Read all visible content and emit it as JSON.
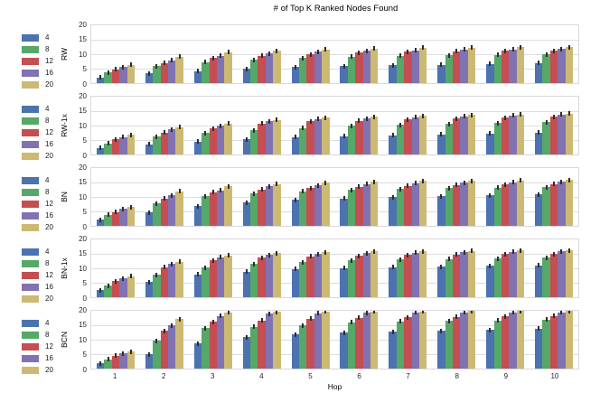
{
  "title": "# of Top K Ranked Nodes Found",
  "xlabel": "Hop",
  "palette": [
    "#4C72B0",
    "#55A868",
    "#C44E52",
    "#8172B2",
    "#CCB974"
  ],
  "chart_data": {
    "type": "bar",
    "title": "# of Top K Ranked Nodes Found",
    "xlabel": "Hop",
    "grid": true,
    "legend_position": "left-of-each-subplot",
    "categories": [
      "1",
      "2",
      "3",
      "4",
      "5",
      "6",
      "7",
      "8",
      "9",
      "10"
    ],
    "legend_labels": [
      "4",
      "8",
      "12",
      "16",
      "20"
    ],
    "yticks": [
      0,
      5,
      10,
      15,
      20
    ],
    "ylim": [
      0,
      20
    ],
    "error_bar": 0.7,
    "subplots": [
      {
        "name": "RW",
        "series": [
          {
            "name": "4",
            "values": [
              2.0,
              3.3,
              4.2,
              5.0,
              5.5,
              5.8,
              6.1,
              6.4,
              6.7,
              7.0
            ]
          },
          {
            "name": "8",
            "values": [
              3.7,
              5.9,
              7.2,
              8.1,
              8.7,
              9.1,
              9.4,
              9.6,
              9.8,
              10.0
            ]
          },
          {
            "name": "12",
            "values": [
              4.8,
              7.0,
              8.6,
              9.5,
              10.0,
              10.5,
              10.8,
              11.0,
              11.1,
              11.2
            ]
          },
          {
            "name": "16",
            "values": [
              5.6,
              7.9,
              9.4,
              10.2,
              10.8,
              11.2,
              11.4,
              11.6,
              11.7,
              11.8
            ]
          },
          {
            "name": "20",
            "values": [
              6.4,
              9.2,
              10.7,
              11.2,
              11.6,
              12.0,
              12.2,
              12.3,
              12.4,
              12.4
            ]
          }
        ]
      },
      {
        "name": "RW-1x",
        "series": [
          {
            "name": "4",
            "values": [
              2.2,
              3.5,
              4.5,
              5.3,
              6.0,
              6.3,
              6.7,
              7.0,
              7.3,
              7.6
            ]
          },
          {
            "name": "8",
            "values": [
              3.8,
              6.2,
              7.4,
              8.4,
              9.2,
              10.0,
              10.3,
              10.6,
              10.9,
              11.2
            ]
          },
          {
            "name": "12",
            "values": [
              5.2,
              7.6,
              9.0,
              10.7,
              11.5,
              11.7,
              12.1,
              12.4,
              12.7,
              13.0
            ]
          },
          {
            "name": "16",
            "values": [
              6.0,
              8.6,
              10.0,
              11.5,
              12.2,
              12.5,
              12.9,
              13.2,
              13.5,
              13.8
            ]
          },
          {
            "name": "20",
            "values": [
              6.8,
              9.4,
              10.7,
              11.9,
              12.7,
              13.0,
              13.3,
              13.6,
              13.9,
              14.2
            ]
          }
        ]
      },
      {
        "name": "BN",
        "series": [
          {
            "name": "4",
            "values": [
              2.1,
              4.6,
              6.8,
              8.0,
              9.0,
              9.5,
              9.9,
              10.2,
              10.5,
              10.8
            ]
          },
          {
            "name": "8",
            "values": [
              3.8,
              7.8,
              10.2,
              11.2,
              12.0,
              12.4,
              12.8,
              13.0,
              13.2,
              13.4
            ]
          },
          {
            "name": "12",
            "values": [
              4.8,
              9.4,
              11.7,
              12.6,
              13.1,
              13.5,
              13.9,
              14.1,
              14.3,
              14.5
            ]
          },
          {
            "name": "16",
            "values": [
              5.8,
              10.6,
              12.3,
              13.6,
              14.0,
              14.5,
              14.8,
              15.0,
              15.1,
              15.3
            ]
          },
          {
            "name": "20",
            "values": [
              6.5,
              11.9,
              13.6,
              14.5,
              15.0,
              15.3,
              15.5,
              15.6,
              15.7,
              15.8
            ]
          }
        ]
      },
      {
        "name": "BN-1x",
        "series": [
          {
            "name": "4",
            "values": [
              2.4,
              5.3,
              7.9,
              8.9,
              9.8,
              10.1,
              10.4,
              10.6,
              10.8,
              11.0
            ]
          },
          {
            "name": "8",
            "values": [
              4.0,
              7.8,
              10.3,
              11.5,
              12.1,
              12.7,
              13.0,
              13.2,
              13.4,
              13.6
            ]
          },
          {
            "name": "12",
            "values": [
              5.6,
              10.4,
              12.7,
              13.6,
              14.1,
              14.3,
              14.6,
              14.8,
              14.9,
              15.0
            ]
          },
          {
            "name": "16",
            "values": [
              6.5,
              11.5,
              13.9,
              14.6,
              15.0,
              15.2,
              15.4,
              15.6,
              15.7,
              15.8
            ]
          },
          {
            "name": "20",
            "values": [
              7.3,
              12.3,
              14.5,
              15.2,
              15.6,
              15.8,
              15.9,
              16.0,
              16.1,
              16.2
            ]
          }
        ]
      },
      {
        "name": "BCN",
        "series": [
          {
            "name": "4",
            "values": [
              1.8,
              5.0,
              8.6,
              10.8,
              11.8,
              12.5,
              12.8,
              13.1,
              13.4,
              13.8
            ]
          },
          {
            "name": "8",
            "values": [
              3.2,
              9.6,
              14.0,
              14.4,
              15.0,
              16.0,
              16.3,
              16.5,
              16.7,
              17.0
            ]
          },
          {
            "name": "12",
            "values": [
              4.5,
              13.0,
              16.2,
              16.7,
              17.3,
              17.6,
              17.8,
              17.9,
              18.0,
              18.2
            ]
          },
          {
            "name": "16",
            "values": [
              5.3,
              15.0,
              18.2,
              19.0,
              19.2,
              19.3,
              19.4,
              19.4,
              19.5,
              19.5
            ]
          },
          {
            "name": "20",
            "values": [
              5.9,
              17.1,
              19.5,
              19.6,
              19.7,
              19.8,
              19.8,
              19.9,
              19.9,
              19.9
            ]
          }
        ]
      }
    ]
  }
}
